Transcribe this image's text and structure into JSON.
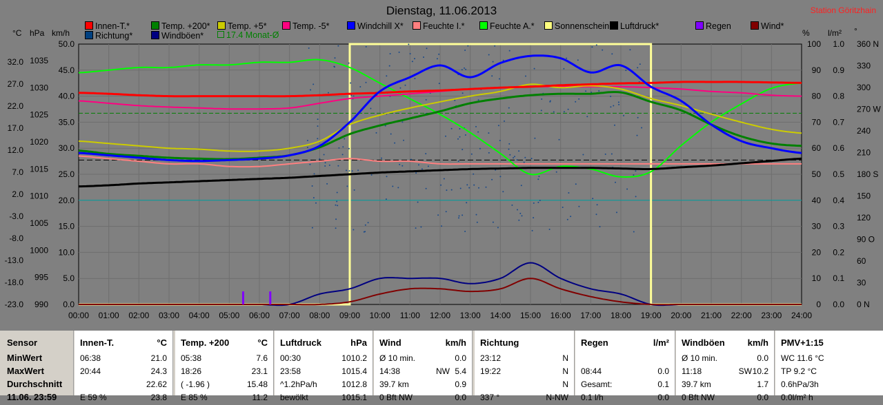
{
  "chart_title": "Dienstag, 11.06.2013",
  "station": "Station Göritzhain",
  "units": {
    "celsius": "°C",
    "hpa": "hPa",
    "kmh": "km/h",
    "percent": "%",
    "lm2": "l/m²",
    "deg": "°"
  },
  "legend": [
    {
      "label": "Innen-T.*",
      "color": "#ff0000"
    },
    {
      "label": "Temp. +200*",
      "color": "#008000"
    },
    {
      "label": "Temp. +5*",
      "color": "#cccc00"
    },
    {
      "label": "Temp. -5*",
      "color": "#ff0080"
    },
    {
      "label": "Windchill X*",
      "color": "#0000ff"
    },
    {
      "label": "Feuchte I.*",
      "color": "#ff8080"
    },
    {
      "label": "Feuchte A.*",
      "color": "#00ff00"
    },
    {
      "label": "Sonnenschein",
      "color": "#ffff80"
    },
    {
      "label": "Luftdruck*",
      "color": "#000000"
    },
    {
      "label": "Regen",
      "color": "#8000ff"
    },
    {
      "label": "Wind*",
      "color": "#800000"
    },
    {
      "label": "Richtung*",
      "color": "#004080"
    },
    {
      "label": "Windböen*",
      "color": "#000080"
    }
  ],
  "monthly_avg_label": "17.4 Monat-Ø",
  "axes": {
    "temp_ticks": [
      "32.0",
      "27.0",
      "22.0",
      "17.0",
      "12.0",
      "7.0",
      "2.0",
      "-3.0",
      "-8.0",
      "-13.0",
      "-18.0",
      "-23.0"
    ],
    "hpa_ticks": [
      "1035",
      "1030",
      "1025",
      "1020",
      "1015",
      "1010",
      "1005",
      "1000",
      "995",
      "990"
    ],
    "kmh_ticks": [
      "50.0",
      "45.0",
      "40.0",
      "35.0",
      "30.0",
      "25.0",
      "20.0",
      "15.0",
      "10.0",
      "5.0",
      "0.0"
    ],
    "pct_ticks": [
      "100",
      "90",
      "80",
      "70",
      "60",
      "50",
      "40",
      "30",
      "20",
      "10",
      "0"
    ],
    "rain_ticks": [
      "1.0",
      "0.9",
      "0.8",
      "0.7",
      "0.6",
      "0.5",
      "0.4",
      "0.3",
      "0.2",
      "0.1",
      "0.0"
    ],
    "dir_ticks": [
      "360 N",
      "330",
      "300",
      "270 W",
      "240",
      "210",
      "180 S",
      "150",
      "120",
      "90 O",
      "60",
      "30",
      "0 N"
    ],
    "time_ticks": [
      "00:00",
      "01:00",
      "02:00",
      "03:00",
      "04:00",
      "05:00",
      "06:00",
      "07:00",
      "08:00",
      "09:00",
      "10:00",
      "11:00",
      "12:00",
      "13:00",
      "14:00",
      "15:00",
      "16:00",
      "17:00",
      "18:00",
      "19:00",
      "20:00",
      "21:00",
      "22:00",
      "23:00",
      "24:00"
    ]
  },
  "chart_data": {
    "type": "line",
    "title": "Dienstag, 11.06.2013",
    "x_range": [
      "00:00",
      "24:00"
    ],
    "temp_range_c": [
      -23,
      32
    ],
    "hpa_range": [
      990,
      1035
    ],
    "kmh_range": [
      0,
      50
    ],
    "pct_range": [
      0,
      100
    ],
    "x_hours": [
      0,
      1,
      2,
      3,
      4,
      5,
      6,
      7,
      8,
      9,
      10,
      11,
      12,
      13,
      14,
      15,
      16,
      17,
      18,
      19,
      20,
      21,
      22,
      23,
      24
    ],
    "series": [
      {
        "name": "Innen-T.*",
        "unit": "°C",
        "values": [
          21.7,
          21.5,
          21.2,
          21.0,
          21.0,
          21.0,
          21.0,
          21.0,
          21.2,
          21.5,
          21.7,
          22.0,
          22.2,
          22.5,
          22.8,
          23.0,
          23.3,
          23.5,
          23.7,
          23.8,
          24.0,
          24.0,
          24.0,
          23.9,
          23.8
        ]
      },
      {
        "name": "Temp. +200*",
        "unit": "°C",
        "values": [
          9.5,
          8.8,
          8.4,
          8.0,
          7.8,
          7.7,
          8.0,
          8.5,
          10.2,
          13.0,
          14.8,
          16.3,
          17.8,
          19.5,
          20.5,
          21.2,
          21.5,
          21.5,
          21.8,
          19.8,
          18.0,
          15.0,
          12.5,
          11.0,
          10.5
        ]
      },
      {
        "name": "Temp. +5*",
        "unit": "°C",
        "values": [
          11.5,
          11.0,
          10.5,
          10.0,
          9.8,
          9.4,
          9.4,
          10.0,
          11.5,
          15.0,
          17.0,
          18.5,
          19.8,
          21.0,
          22.0,
          23.5,
          22.8,
          23.2,
          22.5,
          20.5,
          19.0,
          17.2,
          15.5,
          14.0,
          13.2
        ]
      },
      {
        "name": "Temp. -5*",
        "unit": "°C",
        "values": [
          20.0,
          19.5,
          19.0,
          18.7,
          18.5,
          18.3,
          18.3,
          18.5,
          19.5,
          20.5,
          21.0,
          21.5,
          22.0,
          22.5,
          22.8,
          23.0,
          23.0,
          23.0,
          23.0,
          22.8,
          22.5,
          22.0,
          21.7,
          21.2,
          21.0
        ]
      },
      {
        "name": "Windchill X*",
        "unit": "°C",
        "values": [
          9.0,
          8.5,
          8.0,
          7.5,
          7.3,
          7.5,
          7.8,
          8.5,
          10.5,
          15.5,
          22.0,
          25.0,
          27.5,
          25.0,
          28.0,
          29.5,
          29.0,
          26.0,
          27.5,
          23.0,
          20.0,
          15.0,
          11.5,
          10.0,
          9.0
        ]
      },
      {
        "name": "Luftdruck*",
        "unit": "hPa",
        "values": [
          1010.4,
          1010.6,
          1010.9,
          1011.1,
          1011.3,
          1011.5,
          1011.7,
          1011.9,
          1012.2,
          1012.5,
          1012.8,
          1013.0,
          1013.2,
          1013.4,
          1013.5,
          1013.6,
          1013.6,
          1013.6,
          1013.5,
          1013.4,
          1013.7,
          1014.0,
          1014.4,
          1014.8,
          1015.2
        ]
      },
      {
        "name": "Feuchte I.*",
        "unit": "%",
        "values": [
          57,
          56,
          55,
          54,
          54,
          53,
          53,
          54,
          55,
          56,
          55,
          55,
          54,
          54,
          54,
          54,
          54,
          54,
          54,
          54,
          54,
          54,
          54,
          54,
          54
        ]
      },
      {
        "name": "Feuchte A.*",
        "unit": "%",
        "values": [
          89,
          90,
          91,
          91,
          92,
          92,
          93,
          93,
          94,
          91,
          85,
          79,
          73,
          66,
          58,
          50,
          53,
          52,
          49,
          51,
          61,
          70,
          77,
          83,
          85
        ]
      },
      {
        "name": "Wind*",
        "unit": "km/h",
        "values": [
          0,
          0,
          0,
          0,
          0,
          0,
          0,
          0,
          0,
          0.5,
          2,
          3,
          3,
          2.5,
          3,
          5,
          3,
          1.5,
          0.5,
          0,
          0,
          0,
          0,
          0,
          0
        ]
      },
      {
        "name": "Windböen*",
        "unit": "km/h",
        "values": [
          0,
          0,
          0,
          0,
          0,
          0,
          0,
          0,
          2,
          3,
          5,
          5,
          5,
          4,
          5,
          8,
          5,
          3,
          2,
          0,
          0,
          0,
          0,
          0,
          0
        ]
      },
      {
        "name": "Sonnenschein",
        "unit": "%",
        "values": [
          0,
          0,
          0,
          0,
          0,
          0,
          0,
          0,
          0,
          100,
          100,
          100,
          100,
          100,
          100,
          100,
          100,
          100,
          100,
          0,
          0,
          0,
          0,
          0,
          0
        ]
      }
    ],
    "monthly_avg_c": 17.4
  },
  "table": {
    "row_labels": [
      "Sensor",
      "MinWert",
      "MaxWert",
      "Durchschnitt",
      "11.06. 23:59"
    ],
    "columns": [
      {
        "title": "Innen-T.",
        "unit": "°C",
        "rows": [
          [
            "06:38",
            "",
            "21.0"
          ],
          [
            "20:44",
            "",
            "24.3"
          ],
          [
            "",
            "",
            "22.62"
          ],
          [
            "E 59 %",
            "",
            "23.8"
          ]
        ]
      },
      {
        "title": "Temp. +200",
        "unit": "°C",
        "rows": [
          [
            "05:38",
            "",
            "7.6"
          ],
          [
            "18:26",
            "",
            "23.1"
          ],
          [
            "( -1.96 )",
            "",
            "15.48"
          ],
          [
            "E 85 %",
            "",
            "11.2"
          ]
        ]
      },
      {
        "title": "Luftdruck",
        "unit": "hPa",
        "rows": [
          [
            "00:30",
            "",
            "1010.2"
          ],
          [
            "23:58",
            "",
            "1015.4"
          ],
          [
            "^1.2hPa/h",
            "",
            "1012.8"
          ],
          [
            "bewölkt",
            "",
            "1015.1"
          ]
        ]
      },
      {
        "title": "Wind",
        "unit": "km/h",
        "rows": [
          [
            "Ø 10 min.",
            "",
            "0.0"
          ],
          [
            "14:38",
            "NW",
            "5.4"
          ],
          [
            "39.7 km",
            "",
            "0.9"
          ],
          [
            "0 Bft NW",
            "",
            "0.0"
          ]
        ]
      },
      {
        "title": "Richtung",
        "unit": "",
        "rows": [
          [
            "23:12",
            "",
            "N"
          ],
          [
            "19:22",
            "",
            "N"
          ],
          [
            "",
            "",
            "N"
          ],
          [
            "337 °",
            "",
            "N-NW"
          ]
        ]
      },
      {
        "title": "Regen",
        "unit": "l/m²",
        "rows": [
          [
            "",
            "",
            ""
          ],
          [
            "08:44",
            "",
            "0.0"
          ],
          [
            "Gesamt:",
            "",
            "0.1"
          ],
          [
            "0.1 l/h",
            "",
            "0.0"
          ]
        ]
      },
      {
        "title": "Windböen",
        "unit": "km/h",
        "rows": [
          [
            "Ø 10 min.",
            "",
            "0.0"
          ],
          [
            "11:18",
            "SW",
            "10.2"
          ],
          [
            "39.7 km",
            "",
            "1.7"
          ],
          [
            "0 Bft NW",
            "",
            "0.0"
          ]
        ]
      },
      {
        "title": "PMV+1:15",
        "unit": "",
        "rows": [
          [
            "WC 11.6 °C",
            "",
            ""
          ],
          [
            "TP 9.2 °C",
            "",
            ""
          ],
          [
            "0.6hPa/3h",
            "",
            ""
          ],
          [
            "0.0l/m² h",
            "",
            ""
          ]
        ]
      }
    ]
  }
}
